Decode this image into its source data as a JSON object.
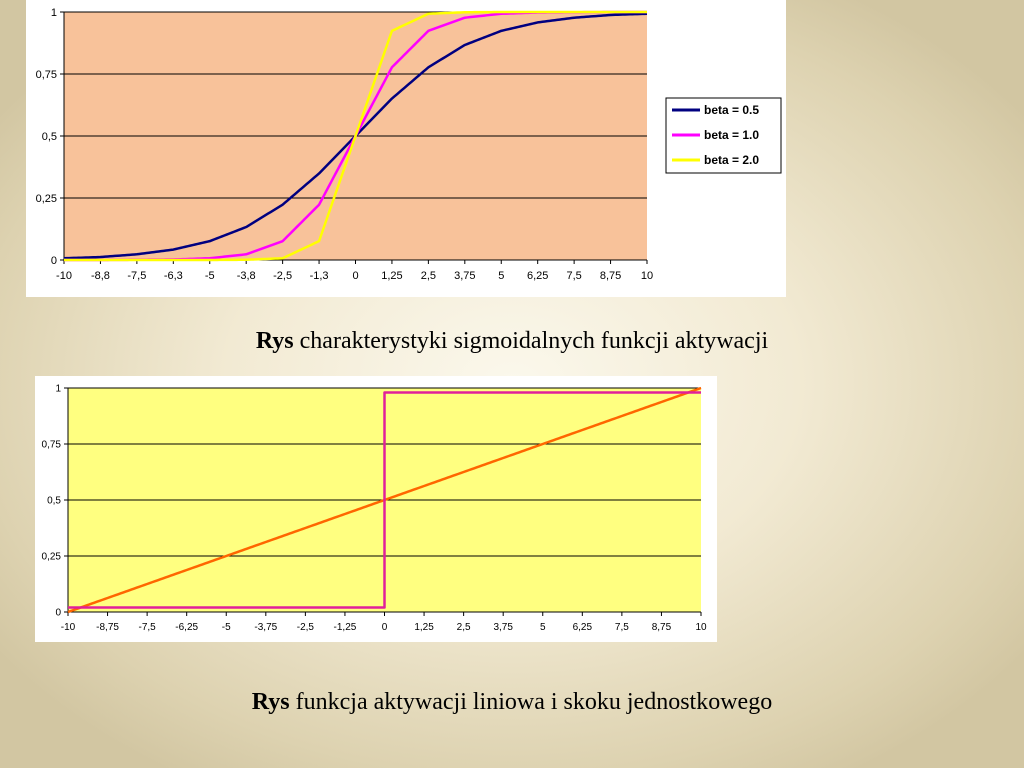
{
  "captions": [
    {
      "bold": "Rys",
      "text": " charakterystyki sigmoidalnych funkcji aktywacji"
    },
    {
      "bold": "Rys",
      "text": "  funkcja aktywacji liniowa i skoku jednostkowego"
    }
  ],
  "chart_data": [
    {
      "type": "line",
      "title": "",
      "xlabel": "",
      "ylabel": "",
      "categories": [
        "-10",
        "-8,8",
        "-7,5",
        "-6,3",
        "-5",
        "-3,8",
        "-2,5",
        "-1,3",
        "0",
        "1,25",
        "2,5",
        "3,75",
        "5",
        "6,25",
        "7,5",
        "8,75",
        "10"
      ],
      "x": [
        -10,
        -8.75,
        -7.5,
        -6.25,
        -5,
        -3.75,
        -2.5,
        -1.25,
        0,
        1.25,
        2.5,
        3.75,
        5,
        6.25,
        7.5,
        8.75,
        10
      ],
      "xlim": [
        -10,
        10
      ],
      "ylim": [
        0,
        1
      ],
      "yticks": [
        "0",
        "0,25",
        "0,5",
        "0,75",
        "1"
      ],
      "grid": true,
      "legend_position": "right",
      "plot_background": "#f8c29a",
      "series": [
        {
          "name": "beta = 0.5",
          "color": "#000080",
          "values": [
            0.007,
            0.012,
            0.023,
            0.042,
            0.076,
            0.133,
            0.223,
            0.349,
            0.5,
            0.651,
            0.777,
            0.867,
            0.924,
            0.958,
            0.977,
            0.988,
            0.993
          ]
        },
        {
          "name": "beta = 1.0",
          "color": "#ff00ff",
          "values": [
            0.0,
            0.0,
            0.001,
            0.002,
            0.007,
            0.023,
            0.076,
            0.223,
            0.5,
            0.777,
            0.924,
            0.977,
            0.993,
            0.998,
            0.999,
            1.0,
            1.0
          ]
        },
        {
          "name": "beta = 2.0",
          "color": "#ffff00",
          "values": [
            0.0,
            0.0,
            0.0,
            0.0,
            0.0,
            0.001,
            0.007,
            0.076,
            0.5,
            0.924,
            0.993,
            0.999,
            1.0,
            1.0,
            1.0,
            1.0,
            1.0
          ]
        }
      ]
    },
    {
      "type": "line",
      "title": "",
      "xlabel": "",
      "ylabel": "",
      "categories": [
        "-10",
        "-8,75",
        "-7,5",
        "-6,25",
        "-5",
        "-3,75",
        "-2,5",
        "-1,25",
        "0",
        "1,25",
        "2,5",
        "3,75",
        "5",
        "6,25",
        "7,5",
        "8,75",
        "10"
      ],
      "x": [
        -10,
        -8.75,
        -7.5,
        -6.25,
        -5,
        -3.75,
        -2.5,
        -1.25,
        0,
        1.25,
        2.5,
        3.75,
        5,
        6.25,
        7.5,
        8.75,
        10
      ],
      "xlim": [
        -10,
        10
      ],
      "ylim": [
        0,
        1
      ],
      "yticks": [
        "0",
        "0,25",
        "0,5",
        "0,75",
        "1"
      ],
      "grid": true,
      "legend_position": "none",
      "plot_background": "#ffff80",
      "series": [
        {
          "color": "#ff6600",
          "values": [
            0.0,
            0.0625,
            0.125,
            0.1875,
            0.25,
            0.3125,
            0.375,
            0.4375,
            0.5,
            0.5625,
            0.625,
            0.6875,
            0.75,
            0.8125,
            0.875,
            0.9375,
            1.0
          ]
        },
        {
          "color": "#e0209a",
          "step": true,
          "x": [
            -10,
            0,
            0,
            10
          ],
          "values": [
            0.02,
            0.02,
            0.98,
            0.98
          ]
        }
      ]
    }
  ]
}
